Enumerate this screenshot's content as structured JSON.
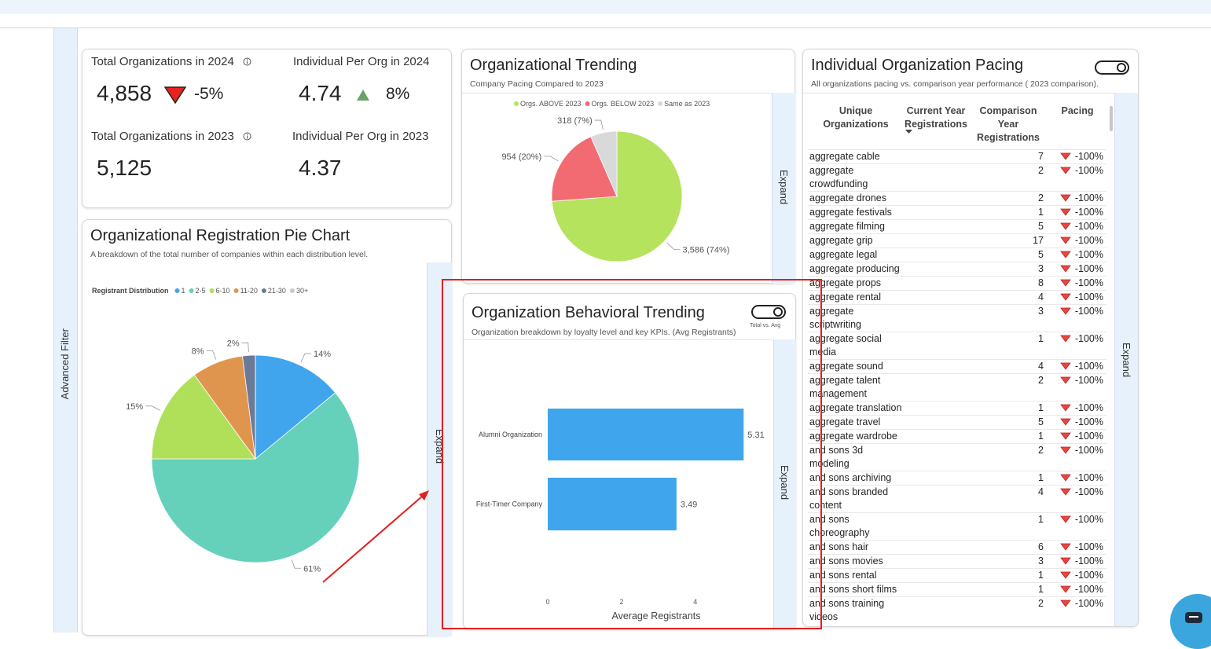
{
  "sidebar": {
    "label": "Advanced Filter"
  },
  "kpis": [
    {
      "label": "Total Organizations in 2024",
      "value": "4,858",
      "change": "-5%"
    },
    {
      "label": "Individual Per Org in 2024",
      "value": "4.74",
      "change": "8%"
    },
    {
      "label": "Total Organizations in 2023",
      "value": "5,125"
    },
    {
      "label": "Individual Per Org in 2023",
      "value": "4.37"
    }
  ],
  "chart_data": [
    {
      "type": "pie",
      "title": "Organizational Registration Pie Chart",
      "subtitle": "A breakdown of the total number of companies within each distribution level.",
      "legend_title": "Registrant Distribution",
      "categories": [
        "1",
        "2-5",
        "6-10",
        "11-20",
        "21-30",
        "30+"
      ],
      "values": [
        14,
        61,
        15,
        8,
        2,
        0
      ],
      "value_labels": [
        "14%",
        "61%",
        "15%",
        "8%",
        "2%",
        null
      ],
      "colors": [
        "#41a5ee",
        "#66d1bb",
        "#b0e05a",
        "#e0954f",
        "#6b7a99",
        "#c8c8c8"
      ],
      "expand_label": "Expand"
    },
    {
      "type": "pie",
      "title": "Organizational Trending",
      "subtitle": "Company Pacing Compared to 2023",
      "categories": [
        "Orgs. ABOVE 2023",
        "Orgs. BELOW 2023",
        "Same as 2023"
      ],
      "values": [
        3586,
        954,
        318
      ],
      "value_labels": [
        "3,586 (74%)",
        "954 (20%)",
        "318 (7%)"
      ],
      "colors": [
        "#b5e35d",
        "#f36b72",
        "#d9d9d9"
      ],
      "expand_label": "Expand"
    },
    {
      "type": "bar",
      "orientation": "horizontal",
      "title": "Organization Behavioral Trending",
      "subtitle": "Organization breakdown by loyalty level and key KPIs. (Avg Registrants)",
      "toggle_label": "Total vs. Avg",
      "categories": [
        "Alumni Organization",
        "First-Timer Company"
      ],
      "values": [
        5.31,
        3.49
      ],
      "color": "#3fa6ee",
      "xlabel": "Average Registrants",
      "xlim": [
        0,
        5.9
      ],
      "xticks": [
        0,
        2,
        4
      ],
      "expand_label": "Expand"
    }
  ],
  "pacing": {
    "title": "Individual Organization Pacing",
    "subtitle": "All organizations pacing vs. comparison year performance ( 2023 comparison).",
    "columns": [
      "Unique Organizations",
      "Current Year Registrations",
      "Comparison Year Registrations",
      "Pacing"
    ],
    "rows": [
      {
        "name": "aggregate cable",
        "comparison": 7,
        "pacing": "-100%"
      },
      {
        "name": "aggregate crowdfunding",
        "comparison": 2,
        "pacing": "-100%"
      },
      {
        "name": "aggregate drones",
        "comparison": 2,
        "pacing": "-100%"
      },
      {
        "name": "aggregate festivals",
        "comparison": 1,
        "pacing": "-100%"
      },
      {
        "name": "aggregate filming",
        "comparison": 5,
        "pacing": "-100%"
      },
      {
        "name": "aggregate grip",
        "comparison": 17,
        "pacing": "-100%"
      },
      {
        "name": "aggregate legal",
        "comparison": 5,
        "pacing": "-100%"
      },
      {
        "name": "aggregate producing",
        "comparison": 3,
        "pacing": "-100%"
      },
      {
        "name": "aggregate props",
        "comparison": 8,
        "pacing": "-100%"
      },
      {
        "name": "aggregate rental",
        "comparison": 4,
        "pacing": "-100%"
      },
      {
        "name": "aggregate scriptwriting",
        "comparison": 3,
        "pacing": "-100%"
      },
      {
        "name": "aggregate social media",
        "comparison": 1,
        "pacing": "-100%"
      },
      {
        "name": "aggregate sound",
        "comparison": 4,
        "pacing": "-100%"
      },
      {
        "name": "aggregate talent management",
        "comparison": 2,
        "pacing": "-100%"
      },
      {
        "name": "aggregate translation",
        "comparison": 1,
        "pacing": "-100%"
      },
      {
        "name": "aggregate travel",
        "comparison": 5,
        "pacing": "-100%"
      },
      {
        "name": "aggregate wardrobe",
        "comparison": 1,
        "pacing": "-100%"
      },
      {
        "name": "and sons 3d modeling",
        "comparison": 2,
        "pacing": "-100%"
      },
      {
        "name": "and sons archiving",
        "comparison": 1,
        "pacing": "-100%"
      },
      {
        "name": "and sons branded content",
        "comparison": 4,
        "pacing": "-100%"
      },
      {
        "name": "and sons choreography",
        "comparison": 1,
        "pacing": "-100%"
      },
      {
        "name": "and sons hair",
        "comparison": 6,
        "pacing": "-100%"
      },
      {
        "name": "and sons movies",
        "comparison": 3,
        "pacing": "-100%"
      },
      {
        "name": "and sons rental",
        "comparison": 1,
        "pacing": "-100%"
      },
      {
        "name": "and sons short films",
        "comparison": 1,
        "pacing": "-100%"
      },
      {
        "name": "and sons training videos",
        "comparison": 2,
        "pacing": "-100%"
      }
    ],
    "expand_label": "Expand"
  }
}
